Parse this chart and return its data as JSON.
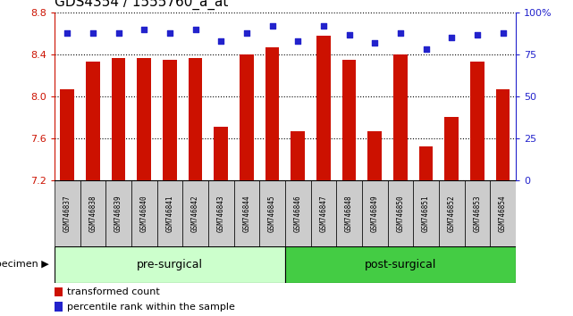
{
  "title": "GDS4354 / 1555760_a_at",
  "samples": [
    "GSM746837",
    "GSM746838",
    "GSM746839",
    "GSM746840",
    "GSM746841",
    "GSM746842",
    "GSM746843",
    "GSM746844",
    "GSM746845",
    "GSM746846",
    "GSM746847",
    "GSM746848",
    "GSM746849",
    "GSM746850",
    "GSM746851",
    "GSM746852",
    "GSM746853",
    "GSM746854"
  ],
  "bar_values": [
    8.07,
    8.33,
    8.37,
    8.37,
    8.35,
    8.37,
    7.71,
    8.4,
    8.47,
    7.67,
    8.58,
    8.35,
    7.67,
    8.4,
    7.52,
    7.8,
    8.33,
    8.07
  ],
  "percentile_values": [
    88,
    88,
    88,
    90,
    88,
    90,
    83,
    88,
    92,
    83,
    92,
    87,
    82,
    88,
    78,
    85,
    87,
    88
  ],
  "ylim_left": [
    7.2,
    8.8
  ],
  "ylim_right": [
    0,
    100
  ],
  "bar_color": "#cc1100",
  "dot_color": "#2222cc",
  "bar_width": 0.55,
  "pre_surgical_count": 9,
  "post_surgical_count": 9,
  "pre_surgical_label": "pre-surgical",
  "post_surgical_label": "post-surgical",
  "specimen_label": "specimen",
  "legend_bar_label": "transformed count",
  "legend_dot_label": "percentile rank within the sample",
  "pre_surgical_color": "#ccffcc",
  "post_surgical_color": "#44cc44",
  "tick_color_left": "#cc1100",
  "tick_color_right": "#2222cc",
  "grid_yticks_left": [
    7.2,
    7.6,
    8.0,
    8.4,
    8.8
  ],
  "grid_yticks_right": [
    0,
    25,
    50,
    75,
    100
  ],
  "sample_box_color": "#cccccc",
  "title_fontsize": 11,
  "ytick_fontsize": 8,
  "sample_fontsize": 5.5,
  "group_fontsize": 9,
  "legend_fontsize": 8,
  "specimen_fontsize": 8
}
